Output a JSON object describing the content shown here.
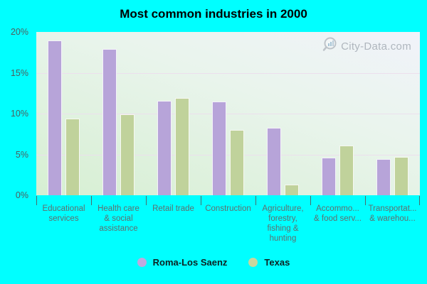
{
  "title": "Most common industries in 2000",
  "watermark": "City-Data.com",
  "colors": {
    "background": "#00ffff",
    "plot_gradient_top": "#f1f3fa",
    "plot_gradient_bottom": "#d6efd2",
    "gridline": "#ecdfed",
    "axis_text": "#4e5e5e",
    "category_text": "#5e6f6f",
    "roma_bar": "#b7a4d9",
    "texas_bar": "#c0d29b",
    "legend_text": "#0d2222"
  },
  "legend": {
    "entries": [
      {
        "label": "Roma-Los Saenz",
        "color": "#bfa9de"
      },
      {
        "label": "Texas",
        "color": "#c9d69e"
      }
    ]
  },
  "chart_data": {
    "type": "bar",
    "title": "Most common industries in 2000",
    "categories": [
      "Educational services",
      "Health care & social assistance",
      "Retail trade",
      "Construction",
      "Agriculture, forestry, fishing & hunting",
      "Accommo... & food serv...",
      "Transportat... & warehou..."
    ],
    "category_lines": [
      [
        "Educational",
        "services"
      ],
      [
        "Health care",
        "& social",
        "assistance"
      ],
      [
        "Retail trade"
      ],
      [
        "Construction"
      ],
      [
        "Agriculture,",
        "forestry,",
        "fishing &",
        "hunting"
      ],
      [
        "Accommo...",
        "& food serv..."
      ],
      [
        "Transportat...",
        "& warehou..."
      ]
    ],
    "series": [
      {
        "name": "Roma-Los Saenz",
        "color": "#b7a4d9",
        "values": [
          19.0,
          17.9,
          11.6,
          11.5,
          8.3,
          4.6,
          4.4
        ]
      },
      {
        "name": "Texas",
        "color": "#c0d29b",
        "values": [
          9.4,
          9.9,
          11.9,
          8.0,
          1.3,
          6.1,
          4.7
        ]
      }
    ],
    "ylabel": "",
    "xlabel": "",
    "ylim": [
      0,
      20
    ],
    "y_ticks": [
      "20%",
      "15%",
      "10%",
      "5%",
      "0%"
    ],
    "y_tick_values": [
      20,
      15,
      10,
      5,
      0
    ],
    "grid": true,
    "legend_position": "bottom"
  }
}
